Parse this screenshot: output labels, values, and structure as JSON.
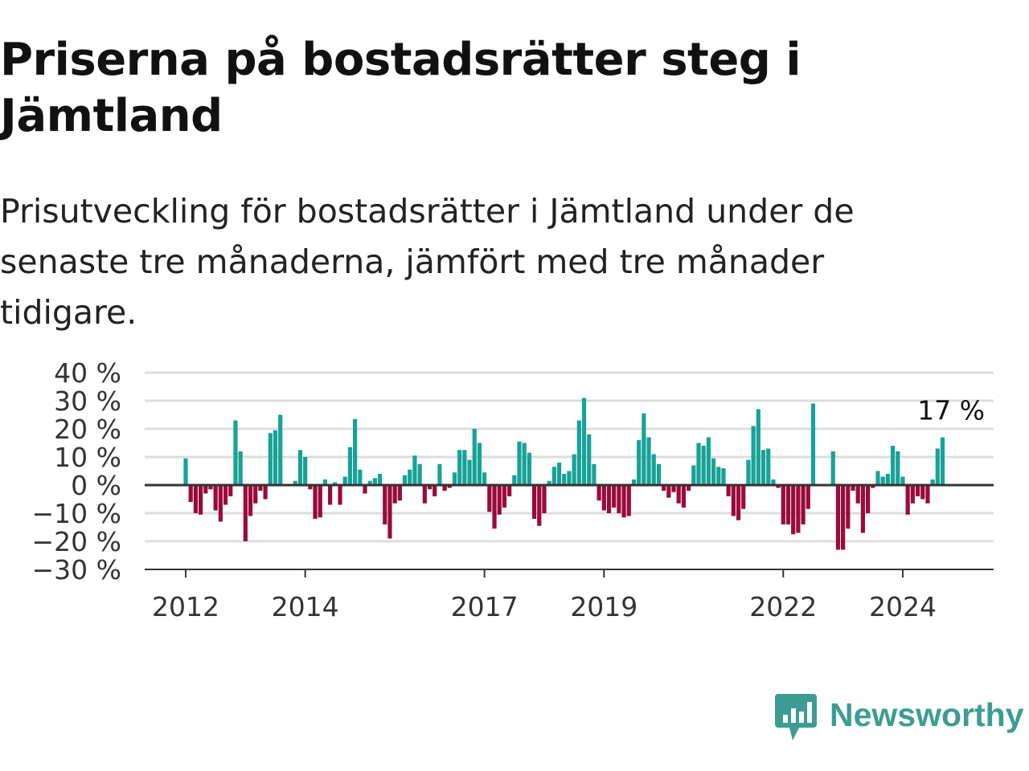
{
  "title": "Priserna på bostadsrätter steg i Jämtland",
  "subtitle": "Prisutveckling för bostadsrätter i Jämtland under de senaste tre månaderna, jämfört med tre månader tidigare.",
  "logo": {
    "text": "Newsworthy",
    "icon": "bar-chart-speech-bubble-icon",
    "color": "#3d9c93"
  },
  "colors": {
    "positive": "#17a297",
    "negative": "#9a0a3c",
    "grid": "#dddddd",
    "axis": "#333333"
  },
  "chart_data": {
    "type": "bar",
    "title": "",
    "xlabel": "",
    "ylabel": "",
    "unit": "%",
    "ylim": [
      -30,
      40
    ],
    "yticks": [
      40,
      30,
      20,
      10,
      0,
      -10,
      -20,
      -30
    ],
    "ytick_labels": [
      "40 %",
      "30 %",
      "20 %",
      "10 %",
      "0 %",
      "−10 %",
      "−20 %",
      "−30 %"
    ],
    "xticks": [
      2012,
      2014,
      2017,
      2019,
      2022,
      2024
    ],
    "xtick_labels": [
      "2012",
      "2014",
      "2017",
      "2019",
      "2022",
      "2024"
    ],
    "grid": true,
    "start": "2012-01",
    "end_label": "17 %",
    "values": [
      9.5,
      -6,
      -10,
      -10.5,
      -3,
      -1.5,
      -9,
      -13,
      -7,
      -4,
      23,
      12,
      -20,
      -11,
      -6.5,
      -2,
      -5,
      18.5,
      19.5,
      25,
      0,
      0,
      1.5,
      12.5,
      10,
      -1.5,
      -12,
      -11.5,
      2,
      -7,
      1,
      -7,
      3,
      13.5,
      23.5,
      5.5,
      -3,
      1.5,
      2.5,
      4,
      -14,
      -19,
      -6.5,
      -5.5,
      3.5,
      5.5,
      10.5,
      7.5,
      -6.5,
      -1.5,
      -4,
      7.5,
      -2,
      -1,
      4.5,
      12.5,
      12.5,
      9,
      20,
      15,
      4.5,
      -9.5,
      -15.5,
      -10.5,
      -8,
      -4,
      3.5,
      15.5,
      15,
      11.5,
      -12,
      -14.5,
      -10,
      1.5,
      6.5,
      8,
      4,
      5,
      11,
      23,
      31,
      18,
      7.5,
      -5.5,
      -9,
      -10,
      -8,
      -10,
      -11.5,
      -11,
      2,
      16,
      25.5,
      17,
      11,
      7.5,
      -2,
      -4.5,
      -2.5,
      -6.5,
      -8,
      -2,
      7,
      15,
      14,
      17,
      9.5,
      6.5,
      6,
      -4,
      -11,
      -12.5,
      -8.5,
      9,
      21,
      27,
      12.5,
      13,
      2,
      -1,
      -14,
      -14,
      -17.5,
      -17,
      -14,
      -8.5,
      29,
      0,
      0,
      0,
      12,
      -23,
      -23,
      -15.5,
      -2,
      -6.5,
      -17,
      -10,
      -1,
      5,
      3,
      4,
      14,
      12,
      3,
      -10.5,
      -6.5,
      -4,
      -5,
      -6.5,
      2,
      13,
      17
    ]
  }
}
